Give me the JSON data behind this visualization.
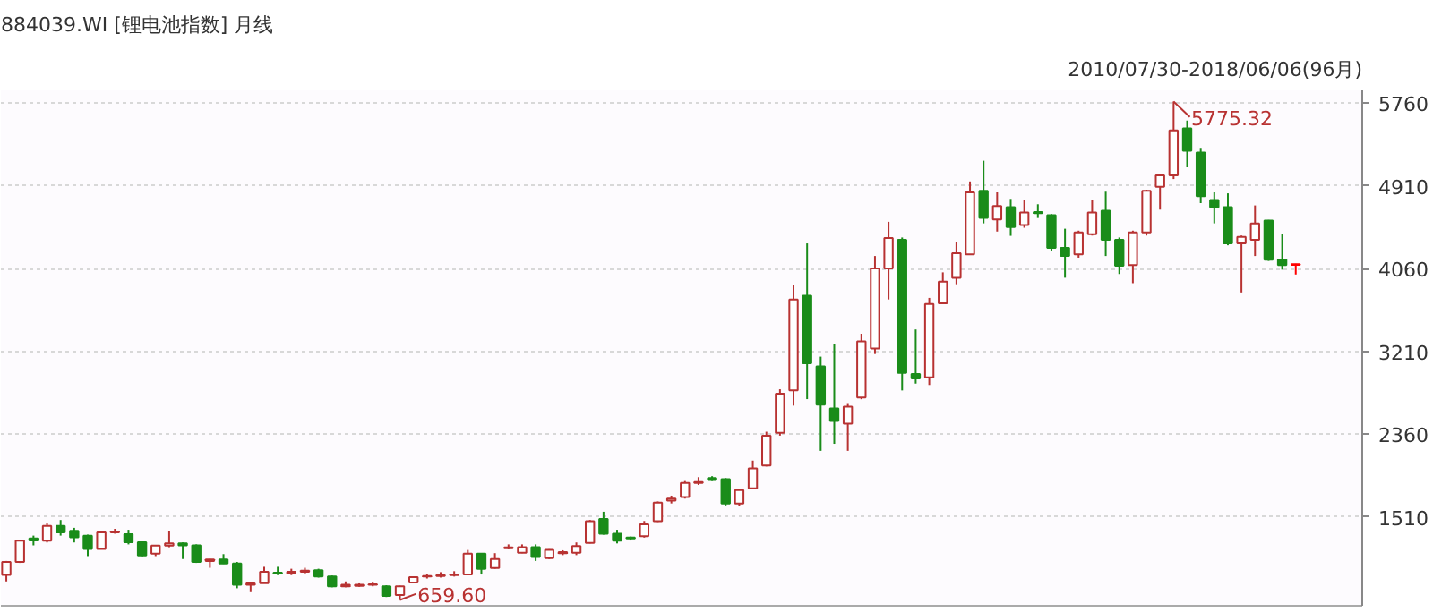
{
  "chart_data": {
    "type": "candlestick",
    "title": "884039.WI [锂电池指数] 月线",
    "subtitle": "2010/07/30-2018/06/06(96月)",
    "categories": [
      null,
      null,
      null,
      null,
      null,
      null,
      null,
      null,
      null,
      null,
      null,
      null,
      null,
      null,
      null,
      null,
      null,
      null,
      null,
      null,
      null,
      null,
      null,
      null,
      null,
      null,
      null,
      null,
      null,
      null,
      null,
      null,
      null,
      null,
      null,
      null,
      null,
      null,
      null,
      null,
      null,
      null,
      null,
      null,
      null,
      null,
      null,
      null,
      null,
      null,
      null,
      null,
      null,
      null,
      null,
      null,
      null,
      null,
      null,
      null,
      null,
      null,
      null,
      null,
      null,
      null,
      null,
      null,
      null,
      null,
      null,
      null,
      null,
      null,
      null,
      null,
      null,
      null,
      null,
      null,
      null,
      null,
      null,
      null,
      null,
      null,
      null,
      null,
      null,
      null,
      null,
      null,
      null,
      null,
      null,
      null
    ],
    "ohlc": [
      [
        916,
        1060,
        850,
        1050
      ],
      [
        1050,
        1268,
        1040,
        1268
      ],
      [
        1290,
        1320,
        1220,
        1270
      ],
      [
        1268,
        1450,
        1250,
        1419
      ],
      [
        1419,
        1480,
        1320,
        1352
      ],
      [
        1369,
        1400,
        1250,
        1302
      ],
      [
        1319,
        1330,
        1110,
        1184
      ],
      [
        1184,
        1360,
        1180,
        1352
      ],
      [
        1352,
        1390,
        1340,
        1360
      ],
      [
        1335,
        1380,
        1230,
        1251
      ],
      [
        1251,
        1260,
        1100,
        1117
      ],
      [
        1134,
        1220,
        1110,
        1218
      ],
      [
        1218,
        1369,
        1201,
        1240
      ],
      [
        1240,
        1250,
        1080,
        1220
      ],
      [
        1220,
        1230,
        1040,
        1050
      ],
      [
        1060,
        1080,
        990,
        1075
      ],
      [
        1075,
        1130,
        1030,
        1034
      ],
      [
        1034,
        1050,
        780,
        816
      ],
      [
        816,
        840,
        740,
        830
      ],
      [
        833,
        1000,
        830,
        950
      ],
      [
        940,
        1000,
        915,
        930
      ],
      [
        930,
        980,
        915,
        950
      ],
      [
        950,
        990,
        930,
        960
      ],
      [
        966,
        980,
        890,
        900
      ],
      [
        900,
        910,
        790,
        800
      ],
      [
        800,
        850,
        790,
        815
      ],
      [
        805,
        830,
        795,
        815
      ],
      [
        815,
        840,
        800,
        820
      ],
      [
        800,
        810,
        690,
        700
      ],
      [
        710,
        805,
        659.6,
        800
      ],
      [
        838,
        900,
        830,
        895
      ],
      [
        900,
        930,
        880,
        905
      ],
      [
        905,
        945,
        890,
        915
      ],
      [
        915,
        955,
        900,
        920
      ],
      [
        921,
        1173,
        915,
        1134
      ],
      [
        1134,
        1140,
        921,
        978
      ],
      [
        988,
        1140,
        980,
        1079
      ],
      [
        1190,
        1230,
        1180,
        1200
      ],
      [
        1145,
        1230,
        1140,
        1201
      ],
      [
        1201,
        1230,
        1060,
        1100
      ],
      [
        1090,
        1180,
        1080,
        1173
      ],
      [
        1140,
        1170,
        1120,
        1150
      ],
      [
        1145,
        1250,
        1120,
        1213
      ],
      [
        1246,
        1480,
        1240,
        1469
      ],
      [
        1491,
        1565,
        1330,
        1340
      ],
      [
        1340,
        1380,
        1240,
        1268
      ],
      [
        1300,
        1310,
        1270,
        1290
      ],
      [
        1314,
        1470,
        1300,
        1436
      ],
      [
        1469,
        1670,
        1460,
        1659
      ],
      [
        1680,
        1730,
        1650,
        1700
      ],
      [
        1716,
        1880,
        1700,
        1860
      ],
      [
        1860,
        1920,
        1840,
        1870
      ],
      [
        1910,
        1930,
        1880,
        1890
      ],
      [
        1900,
        1910,
        1630,
        1649
      ],
      [
        1649,
        1800,
        1620,
        1788
      ],
      [
        1805,
        2090,
        1800,
        2010
      ],
      [
        2039,
        2386,
        2030,
        2346
      ],
      [
        2374,
        2822,
        2346,
        2777
      ],
      [
        2810,
        3895,
        2654,
        3744
      ],
      [
        3782,
        4319,
        2721,
        3090
      ],
      [
        3056,
        3157,
        2190,
        2665
      ],
      [
        2626,
        3285,
        2262,
        2497
      ],
      [
        2470,
        2680,
        2190,
        2643
      ],
      [
        2738,
        3392,
        2720,
        3313
      ],
      [
        3241,
        4190,
        3184,
        4062
      ],
      [
        4062,
        4541,
        3744,
        4374
      ],
      [
        4357,
        4380,
        2810,
        2990
      ],
      [
        2978,
        3436,
        2880,
        2933
      ],
      [
        2944,
        3760,
        2866,
        3698
      ],
      [
        3704,
        4022,
        3700,
        3928
      ],
      [
        3967,
        4330,
        3900,
        4218
      ],
      [
        4206,
        4955,
        4200,
        4843
      ],
      [
        4860,
        5168,
        4525,
        4582
      ],
      [
        4565,
        4843,
        4441,
        4704
      ],
      [
        4692,
        4776,
        4397,
        4486
      ],
      [
        4508,
        4766,
        4480,
        4637
      ],
      [
        4640,
        4721,
        4580,
        4630
      ],
      [
        4609,
        4620,
        4240,
        4273
      ],
      [
        4273,
        4470,
        3967,
        4190
      ],
      [
        4206,
        4450,
        4173,
        4431
      ],
      [
        4414,
        4766,
        4400,
        4637
      ],
      [
        4654,
        4850,
        4190,
        4357
      ],
      [
        4357,
        4380,
        4005,
        4089
      ],
      [
        4096,
        4450,
        3911,
        4431
      ],
      [
        4431,
        4870,
        4400,
        4860
      ],
      [
        4900,
        5030,
        4666,
        5017
      ],
      [
        5017,
        5775.32,
        4980,
        5480
      ],
      [
        5500,
        5580,
        5100,
        5269
      ],
      [
        5252,
        5300,
        4733,
        4805
      ],
      [
        4766,
        4843,
        4525,
        4692
      ],
      [
        4692,
        4833,
        4300,
        4319
      ],
      [
        4319,
        4400,
        3816,
        4386
      ],
      [
        4357,
        4709,
        4190,
        4525
      ],
      [
        4553,
        4560,
        4140,
        4151
      ],
      [
        4151,
        4414,
        4050,
        4096
      ],
      [
        4100,
        4110,
        4000,
        4105
      ]
    ],
    "colors": [
      "#b83232",
      "#b83232",
      "#1a8c1a",
      "#b83232",
      "#1a8c1a",
      "#1a8c1a",
      "#1a8c1a",
      "#b83232",
      "#b83232",
      "#1a8c1a",
      "#1a8c1a",
      "#b83232",
      "#b83232",
      "#1a8c1a",
      "#1a8c1a",
      "#b83232",
      "#1a8c1a",
      "#1a8c1a",
      "#b83232",
      "#b83232",
      "#1a8c1a",
      "#b83232",
      "#b83232",
      "#1a8c1a",
      "#1a8c1a",
      "#b83232",
      "#b83232",
      "#b83232",
      "#1a8c1a",
      "#b83232",
      "#b83232",
      "#b83232",
      "#b83232",
      "#b83232",
      "#b83232",
      "#1a8c1a",
      "#b83232",
      "#b83232",
      "#b83232",
      "#1a8c1a",
      "#b83232",
      "#b83232",
      "#b83232",
      "#b83232",
      "#1a8c1a",
      "#1a8c1a",
      "#1a8c1a",
      "#b83232",
      "#b83232",
      "#b83232",
      "#b83232",
      "#b83232",
      "#1a8c1a",
      "#1a8c1a",
      "#b83232",
      "#b83232",
      "#b83232",
      "#b83232",
      "#b83232",
      "#1a8c1a",
      "#1a8c1a",
      "#1a8c1a",
      "#b83232",
      "#b83232",
      "#b83232",
      "#b83232",
      "#1a8c1a",
      "#1a8c1a",
      "#b83232",
      "#b83232",
      "#b83232",
      "#b83232",
      "#1a8c1a",
      "#b83232",
      "#1a8c1a",
      "#b83232",
      "#1a8c1a",
      "#1a8c1a",
      "#1a8c1a",
      "#b83232",
      "#b83232",
      "#1a8c1a",
      "#1a8c1a",
      "#b83232",
      "#b83232",
      "#b83232",
      "#b83232",
      "#1a8c1a",
      "#1a8c1a",
      "#1a8c1a",
      "#1a8c1a",
      "#b83232",
      "#b83232",
      "#1a8c1a",
      "#1a8c1a",
      "#ff0000"
    ],
    "annotations": [
      "5775.32",
      "659.60"
    ],
    "ylim": [
      600,
      5890
    ],
    "yticks": [
      1510,
      2360,
      3210,
      4060,
      4910,
      5760
    ],
    "grid": "y",
    "tick_labels": "y"
  }
}
